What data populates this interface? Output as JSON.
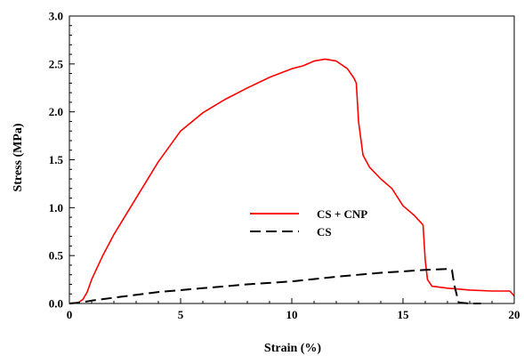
{
  "chart_data": {
    "type": "line",
    "title": "",
    "xlabel": "Strain (%)",
    "ylabel": "Stress (MPa)",
    "xlim": [
      0,
      20
    ],
    "ylim": [
      0,
      3.0
    ],
    "x_ticks": [
      "0",
      "5",
      "10",
      "15",
      "20"
    ],
    "y_ticks": [
      "0.0",
      "0.5",
      "1.0",
      "1.5",
      "2.0",
      "2.5",
      "3.0"
    ],
    "grid": false,
    "legend_position": "center-right",
    "series": [
      {
        "name": "CS + CNP",
        "color": "#ff0000",
        "line_style": "solid",
        "x": [
          0,
          0.4,
          0.6,
          0.8,
          1.0,
          1.5,
          2.0,
          3.0,
          4.0,
          5.0,
          6.0,
          7.0,
          8.0,
          9.0,
          10.0,
          10.5,
          11.0,
          11.5,
          12.0,
          12.5,
          12.8,
          12.9,
          13.0,
          13.2,
          13.5,
          14.0,
          14.5,
          15.0,
          15.5,
          15.9,
          16.0,
          16.1,
          16.3,
          17.0,
          18.0,
          19.0,
          19.8,
          20.0
        ],
        "y": [
          0,
          0.01,
          0.04,
          0.12,
          0.25,
          0.5,
          0.72,
          1.1,
          1.48,
          1.8,
          1.99,
          2.13,
          2.25,
          2.36,
          2.45,
          2.48,
          2.53,
          2.55,
          2.53,
          2.45,
          2.35,
          2.3,
          1.9,
          1.55,
          1.42,
          1.3,
          1.2,
          1.02,
          0.92,
          0.82,
          0.45,
          0.25,
          0.18,
          0.16,
          0.14,
          0.13,
          0.13,
          0.08
        ]
      },
      {
        "name": "CS",
        "color": "#000000",
        "line_style": "dashed",
        "x": [
          0,
          0.5,
          1.0,
          2.0,
          4.0,
          6.0,
          8.0,
          10.0,
          12.0,
          14.0,
          16.0,
          17.0,
          17.2,
          17.3,
          17.5,
          18.0,
          18.5
        ],
        "y": [
          0,
          0.01,
          0.03,
          0.06,
          0.12,
          0.16,
          0.2,
          0.23,
          0.28,
          0.32,
          0.35,
          0.36,
          0.35,
          0.2,
          0.01,
          0.0,
          0.0
        ]
      }
    ]
  }
}
